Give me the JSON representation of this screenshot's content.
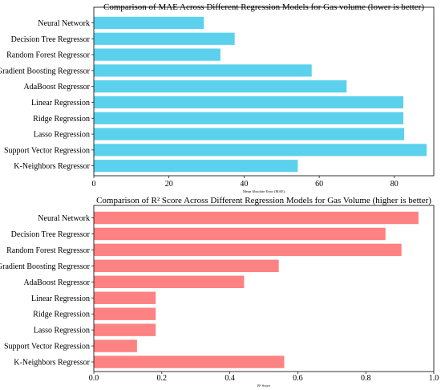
{
  "charts": [
    {
      "id": "mae",
      "color": "#5bd1ee",
      "title": "Comparison of MAE Across Different Regression Models for Gas volume (lower is better)",
      "xlabel": "Mean Absolute Error (MAE)",
      "ticks": [
        "0",
        "20",
        "40",
        "60",
        "80"
      ]
    },
    {
      "id": "r2",
      "color": "#fd8282",
      "title": "Comparison of R² Score Across Different Regression Models for Gas Volume (higher is better)",
      "xlabel": "R² Score",
      "ticks": [
        "0.0",
        "0.2",
        "0.4",
        "0.6",
        "0.8",
        "1.0"
      ]
    }
  ],
  "chart_data": [
    {
      "type": "bar",
      "orientation": "horizontal",
      "title": "Comparison of MAE Across Different Regression Models for Gas volume (lower is better)",
      "xlabel": "Mean Absolute Error (MAE)",
      "ylabel": "",
      "xlim": [
        0,
        90.5
      ],
      "xticks": [
        0,
        20,
        40,
        60,
        80
      ],
      "grid": false,
      "categories": [
        "Neural Network",
        "Decision Tree Regressor",
        "Random Forest Regressor",
        "Gradient Boosting Regressor",
        "AdaBoost Regressor",
        "Linear Regression",
        "Ridge Regression",
        "Lasso Regression",
        "Support Vector Regression",
        "K-Neighbors Regressor"
      ],
      "values": [
        29.3,
        37.5,
        33.7,
        58.0,
        67.3,
        82.4,
        82.4,
        82.6,
        88.6,
        54.3
      ]
    },
    {
      "type": "bar",
      "orientation": "horizontal",
      "title": "Comparison of R² Score Across Different Regression Models for Gas Volume (higher is better)",
      "xlabel": "R² Score",
      "ylabel": "",
      "xlim": [
        0,
        1.0
      ],
      "xticks": [
        0.0,
        0.2,
        0.4,
        0.6,
        0.8,
        1.0
      ],
      "grid": false,
      "categories": [
        "Neural Network",
        "Decision Tree Regressor",
        "Random Forest Regressor",
        "Gradient Boosting Regressor",
        "AdaBoost Regressor",
        "Linear Regression",
        "Ridge Regression",
        "Lasso Regression",
        "Support Vector Regression",
        "K-Neighbors Regressor"
      ],
      "values": [
        0.955,
        0.858,
        0.905,
        0.544,
        0.442,
        0.182,
        0.182,
        0.182,
        0.127,
        0.56
      ]
    }
  ]
}
